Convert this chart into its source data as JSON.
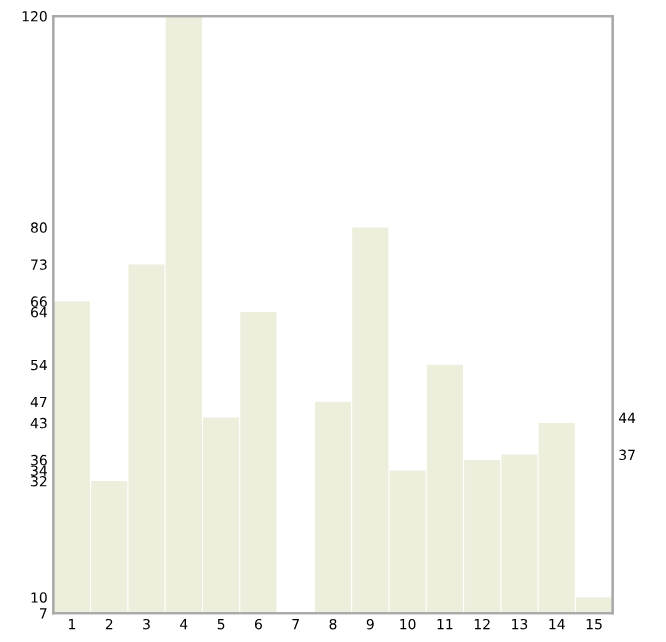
{
  "chart_data": {
    "type": "bar",
    "categories": [
      "1",
      "2",
      "3",
      "4",
      "5",
      "6",
      "7",
      "8",
      "9",
      "10",
      "11",
      "12",
      "13",
      "14",
      "15"
    ],
    "values": [
      66,
      32,
      73,
      120,
      44,
      64,
      7,
      47,
      80,
      34,
      54,
      36,
      37,
      43,
      10
    ],
    "color": "#eeeedd",
    "ylim": [
      7,
      120
    ],
    "yticks": [
      7,
      10,
      32,
      34,
      36,
      43,
      47,
      54,
      64,
      66,
      73,
      80,
      120
    ],
    "y2lim": [
      7,
      120
    ],
    "y2ticks": [
      37,
      44
    ],
    "grid": false
  }
}
